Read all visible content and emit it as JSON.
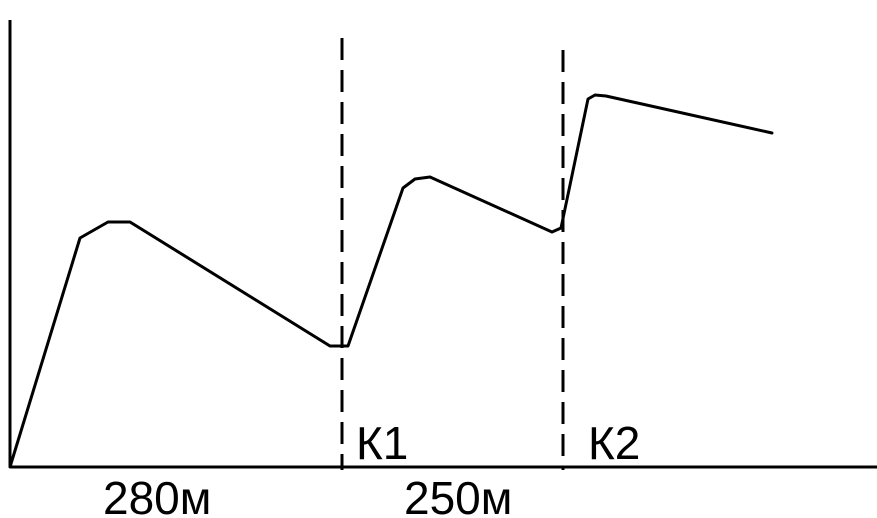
{
  "chart_data": {
    "type": "line",
    "title": "",
    "xlabel": "",
    "ylabel": "",
    "markers": [
      {
        "label": "К1"
      },
      {
        "label": "К2"
      }
    ],
    "segments": [
      {
        "label": "280м",
        "length_m": 280
      },
      {
        "label": "250м",
        "length_m": 250
      }
    ],
    "colors": {
      "line": "#000000",
      "axis": "#000000",
      "background": "#ffffff"
    }
  }
}
